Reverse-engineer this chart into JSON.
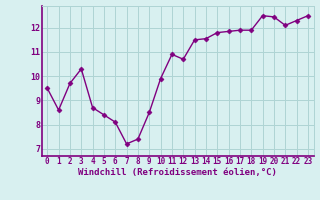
{
  "x": [
    0,
    1,
    2,
    3,
    4,
    5,
    6,
    7,
    8,
    9,
    10,
    11,
    12,
    13,
    14,
    15,
    16,
    17,
    18,
    19,
    20,
    21,
    22,
    23
  ],
  "y": [
    9.5,
    8.6,
    9.7,
    10.3,
    8.7,
    8.4,
    8.1,
    7.2,
    7.4,
    8.5,
    9.9,
    10.9,
    10.7,
    11.5,
    11.55,
    11.8,
    11.85,
    11.9,
    11.9,
    12.5,
    12.45,
    12.1,
    12.3,
    12.5
  ],
  "line_color": "#800080",
  "marker": "D",
  "marker_size": 2.5,
  "linewidth": 1.0,
  "bg_color": "#d8f0f0",
  "grid_color": "#aed4d4",
  "spine_color": "#800080",
  "xlabel": "Windchill (Refroidissement éolien,°C)",
  "xlabel_fontsize": 6.5,
  "xlabel_color": "#800080",
  "ylabel_ticks": [
    7,
    8,
    9,
    10,
    11,
    12
  ],
  "xtick_labels": [
    "0",
    "1",
    "2",
    "3",
    "4",
    "5",
    "6",
    "7",
    "8",
    "9",
    "10",
    "11",
    "12",
    "13",
    "14",
    "15",
    "16",
    "17",
    "18",
    "19",
    "20",
    "21",
    "22",
    "23"
  ],
  "ylim": [
    6.7,
    12.9
  ],
  "xlim": [
    -0.5,
    23.5
  ],
  "tick_fontsize": 5.5,
  "tick_color": "#800080"
}
